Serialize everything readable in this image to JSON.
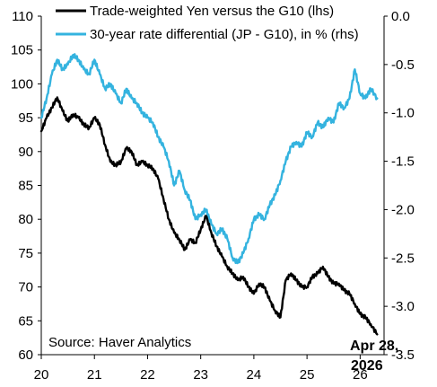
{
  "chart_data": {
    "type": "line",
    "x_ticks": [
      "20",
      "21",
      "22",
      "23",
      "24",
      "25",
      "26"
    ],
    "x_range": [
      2020,
      2026.45
    ],
    "left_axis": {
      "ylim": [
        60,
        110
      ],
      "ticks": [
        "110",
        "105",
        "100",
        "95",
        "90",
        "85",
        "80",
        "75",
        "70",
        "65",
        "60"
      ]
    },
    "right_axis": {
      "ylim": [
        -3.5,
        0.0
      ],
      "ticks": [
        "0.0",
        "-0.5",
        "-1.0",
        "-1.5",
        "-2.0",
        "-2.5",
        "-3.0",
        "-3.5"
      ]
    },
    "series": [
      {
        "name": "Trade-weighted Yen versus the G10 (lhs)",
        "axis": "left",
        "color": "#000000",
        "x": [
          2020.0,
          2020.1,
          2020.2,
          2020.3,
          2020.4,
          2020.5,
          2020.6,
          2020.7,
          2020.8,
          2020.9,
          2021.0,
          2021.1,
          2021.2,
          2021.3,
          2021.4,
          2021.5,
          2021.6,
          2021.7,
          2021.8,
          2021.9,
          2022.0,
          2022.1,
          2022.2,
          2022.3,
          2022.4,
          2022.5,
          2022.6,
          2022.7,
          2022.8,
          2022.9,
          2023.0,
          2023.1,
          2023.2,
          2023.3,
          2023.4,
          2023.5,
          2023.6,
          2023.7,
          2023.8,
          2023.9,
          2024.0,
          2024.1,
          2024.2,
          2024.3,
          2024.4,
          2024.5,
          2024.6,
          2024.7,
          2024.8,
          2024.9,
          2025.0,
          2025.1,
          2025.2,
          2025.3,
          2025.4,
          2025.5,
          2025.6,
          2025.7,
          2025.8,
          2025.9,
          2026.0,
          2026.1,
          2026.2,
          2026.32
        ],
        "values": [
          93.0,
          95.0,
          96.5,
          98.0,
          96.0,
          94.5,
          95.5,
          95.0,
          94.0,
          93.5,
          95.0,
          94.0,
          91.0,
          88.5,
          88.0,
          88.5,
          90.5,
          90.0,
          88.0,
          88.5,
          88.0,
          87.5,
          86.0,
          83.0,
          80.0,
          78.0,
          77.0,
          75.5,
          77.0,
          76.5,
          78.5,
          80.5,
          78.0,
          76.0,
          74.5,
          73.0,
          72.0,
          71.0,
          71.5,
          70.0,
          69.0,
          70.5,
          70.0,
          68.0,
          66.5,
          65.5,
          71.0,
          72.0,
          71.0,
          70.0,
          70.0,
          71.5,
          72.0,
          73.0,
          71.5,
          70.5,
          70.5,
          69.5,
          69.0,
          67.5,
          66.0,
          65.5,
          64.5,
          63.0
        ]
      },
      {
        "name": "30-year rate differential (JP - G10), in % (rhs)",
        "axis": "right",
        "color": "#34b3df",
        "x": [
          2020.0,
          2020.1,
          2020.2,
          2020.3,
          2020.4,
          2020.5,
          2020.6,
          2020.7,
          2020.8,
          2020.9,
          2021.0,
          2021.1,
          2021.2,
          2021.3,
          2021.4,
          2021.5,
          2021.6,
          2021.7,
          2021.8,
          2021.9,
          2022.0,
          2022.1,
          2022.2,
          2022.3,
          2022.4,
          2022.5,
          2022.6,
          2022.7,
          2022.8,
          2022.9,
          2023.0,
          2023.1,
          2023.2,
          2023.3,
          2023.4,
          2023.5,
          2023.6,
          2023.7,
          2023.8,
          2023.9,
          2024.0,
          2024.1,
          2024.2,
          2024.3,
          2024.4,
          2024.5,
          2024.6,
          2024.7,
          2024.8,
          2024.9,
          2025.0,
          2025.1,
          2025.2,
          2025.3,
          2025.4,
          2025.5,
          2025.6,
          2025.7,
          2025.8,
          2025.9,
          2026.0,
          2026.1,
          2026.2,
          2026.32
        ],
        "values": [
          -1.05,
          -0.85,
          -0.6,
          -0.45,
          -0.55,
          -0.5,
          -0.4,
          -0.45,
          -0.55,
          -0.6,
          -0.45,
          -0.6,
          -0.75,
          -0.7,
          -0.8,
          -0.9,
          -0.75,
          -0.85,
          -0.9,
          -1.0,
          -1.05,
          -1.1,
          -1.25,
          -1.35,
          -1.5,
          -1.75,
          -1.6,
          -1.8,
          -1.9,
          -2.1,
          -2.05,
          -2.0,
          -2.15,
          -2.25,
          -2.2,
          -2.3,
          -2.5,
          -2.55,
          -2.45,
          -2.3,
          -2.1,
          -2.05,
          -2.1,
          -1.95,
          -1.85,
          -1.7,
          -1.5,
          -1.35,
          -1.3,
          -1.35,
          -1.2,
          -1.25,
          -1.1,
          -1.15,
          -1.05,
          -1.1,
          -0.9,
          -0.95,
          -0.85,
          -0.55,
          -0.8,
          -0.85,
          -0.75,
          -0.85
        ]
      }
    ],
    "annotations": {
      "source": "Source: Haver Analytics",
      "end_date_line1": "Apr 28,",
      "end_date_line2": "2026"
    }
  }
}
